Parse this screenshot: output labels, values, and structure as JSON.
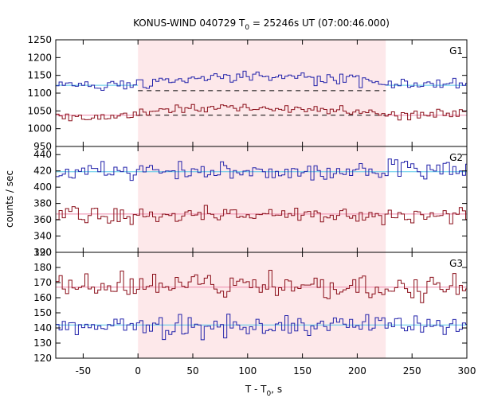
{
  "chart_data": {
    "type": "line",
    "title_main": "KONUS-WIND 040729 T",
    "title_sub": "0",
    "title_rest": " = 25246s UT (07:00:46.000)",
    "xlabel_main": "T - T",
    "xlabel_sub": "0",
    "xlabel_rest": ", s",
    "ylabel": "counts / sec",
    "xlim": [
      -75,
      300
    ],
    "x_ticks": [
      -50,
      0,
      50,
      100,
      150,
      200,
      250,
      300
    ],
    "x_tick_labels": [
      "-50",
      "0",
      "50",
      "100",
      "150",
      "200",
      "250",
      "300"
    ],
    "highlight_interval": [
      0,
      226
    ],
    "bin_start": -75,
    "bin_width": 2.944,
    "colors": {
      "blue_series": "#2222aa",
      "red_series": "#8b0f1a",
      "blue_background": "#55c8e8",
      "red_background": "#ee88aa",
      "highlight": "#fde8ea"
    },
    "panels": [
      {
        "label": "G1",
        "ylim": [
          950,
          1250
        ],
        "y_ticks": [
          950,
          1000,
          1050,
          1100,
          1150,
          1200,
          1250
        ],
        "y_tick_labels": [
          "950",
          "1000",
          "1050",
          "1100",
          "1150",
          "1200",
          "1250"
        ],
        "series": [
          {
            "color_key": "blue_series",
            "background": {
              "level": 1122,
              "color_key": "blue_background",
              "dashed_level_in_interval": 1107
            },
            "knots": [
              [
                -75,
                1125
              ],
              [
                -60,
                1122
              ],
              [
                -40,
                1125
              ],
              [
                -20,
                1121
              ],
              [
                0,
                1128
              ],
              [
                50,
                1140
              ],
              [
                100,
                1145
              ],
              [
                150,
                1142
              ],
              [
                200,
                1136
              ],
              [
                226,
                1125
              ],
              [
                250,
                1120
              ],
              [
                300,
                1128
              ]
            ],
            "amplitude": 14
          },
          {
            "color_key": "red_series",
            "background": {
              "level": 1038,
              "color_key": "red_background",
              "dashed_level_in_interval": 1038
            },
            "knots": [
              [
                -75,
                1035
              ],
              [
                -40,
                1028
              ],
              [
                -20,
                1035
              ],
              [
                0,
                1045
              ],
              [
                50,
                1058
              ],
              [
                100,
                1060
              ],
              [
                150,
                1055
              ],
              [
                200,
                1052
              ],
              [
                226,
                1040
              ],
              [
                250,
                1038
              ],
              [
                300,
                1045
              ]
            ],
            "amplitude": 12
          }
        ]
      },
      {
        "label": "G2",
        "ylim": [
          320,
          450
        ],
        "y_ticks": [
          320,
          340,
          360,
          380,
          400,
          420,
          440
        ],
        "y_tick_labels": [
          "320",
          "340",
          "360",
          "380",
          "400",
          "420",
          "440"
        ],
        "series": [
          {
            "color_key": "blue_series",
            "background": {
              "level": 419,
              "color_key": "blue_background"
            },
            "knots": [
              [
                -75,
                418
              ],
              [
                0,
                420
              ],
              [
                50,
                418
              ],
              [
                100,
                418
              ],
              [
                150,
                417
              ],
              [
                200,
                420
              ],
              [
                250,
                422
              ],
              [
                300,
                418
              ]
            ],
            "amplitude": 10
          },
          {
            "color_key": "red_series",
            "background": {
              "level": 367,
              "color_key": "red_background"
            },
            "knots": [
              [
                -75,
                368
              ],
              [
                0,
                366
              ],
              [
                50,
                367
              ],
              [
                100,
                366
              ],
              [
                150,
                365
              ],
              [
                200,
                364
              ],
              [
                250,
                366
              ],
              [
                300,
                368
              ]
            ],
            "amplitude": 9
          }
        ]
      },
      {
        "label": "G3",
        "ylim": [
          120,
          190
        ],
        "y_ticks": [
          120,
          130,
          140,
          150,
          160,
          170,
          180,
          190
        ],
        "y_tick_labels": [
          "120",
          "130",
          "140",
          "150",
          "160",
          "170",
          "180",
          "190"
        ],
        "series": [
          {
            "color_key": "red_series",
            "background": {
              "level": 167,
              "color_key": "red_background"
            },
            "knots": [
              [
                -75,
                168
              ],
              [
                0,
                168
              ],
              [
                50,
                170
              ],
              [
                100,
                168
              ],
              [
                150,
                167
              ],
              [
                200,
                167
              ],
              [
                250,
                166
              ],
              [
                300,
                167
              ]
            ],
            "amplitude": 7
          },
          {
            "color_key": "blue_series",
            "background": {
              "level": 142,
              "color_key": "blue_background"
            },
            "knots": [
              [
                -75,
                142
              ],
              [
                0,
                140
              ],
              [
                50,
                141
              ],
              [
                100,
                142
              ],
              [
                150,
                142
              ],
              [
                200,
                143
              ],
              [
                250,
                141
              ],
              [
                300,
                141
              ]
            ],
            "amplitude": 6
          }
        ]
      }
    ]
  }
}
